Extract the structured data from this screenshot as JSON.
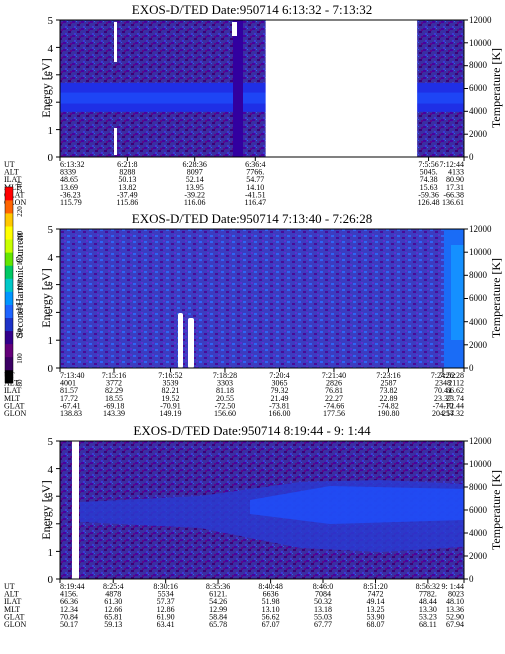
{
  "colorbar": {
    "label": "Second Harmonic Current",
    "ticks": [
      "80",
      "100",
      "120",
      "140",
      "160",
      "180",
      "200",
      "220",
      "240"
    ],
    "colors": [
      "#000000",
      "#3c0064",
      "#64007a",
      "#32008c",
      "#1e32c8",
      "#1e64ff",
      "#0096ff",
      "#00c8c8",
      "#00c864",
      "#64e600",
      "#c8ff00",
      "#ffff00",
      "#ffc800",
      "#ff6400",
      "#ff0000"
    ]
  },
  "chart_data": [
    {
      "type": "heatmap",
      "title": "EXOS-D/TED   Date:950714   6:13:32 - 7:13:32",
      "ylabel": "Energy [eV]",
      "ylim": [
        0,
        5
      ],
      "yticks": [
        "0",
        "1",
        "2",
        "3",
        "4",
        "5"
      ],
      "y2label": "Temperature [K]",
      "y2lim": [
        0,
        12000
      ],
      "y2ticks": [
        "0",
        "2000",
        "4000",
        "6000",
        "8000",
        "10000",
        "12000"
      ],
      "x_fraction": [
        0.0,
        0.1667,
        0.3334,
        0.4834,
        0.9123,
        1.0
      ],
      "band": {
        "low": 1.65,
        "high": 2.7,
        "mid_low": 1.95,
        "mid_high": 2.35
      },
      "gap": [
        0.509,
        0.884
      ],
      "rows": [
        {
          "label": "UT",
          "values": [
            "6:13:32",
            "6:21:8",
            "6:28:36",
            "6:36:4",
            "7:5:56",
            "7:12:44"
          ]
        },
        {
          "label": "ALT",
          "values": [
            "8339",
            "8288",
            "8097",
            "7766.",
            "5045.",
            "4133"
          ]
        },
        {
          "label": "ILAT",
          "values": [
            "48.65",
            "50.13",
            "52.14",
            "54.77",
            "74.38",
            "80.90"
          ]
        },
        {
          "label": "MLT",
          "values": [
            "13.69",
            "13.82",
            "13.95",
            "14.10",
            "15.63",
            "17.31"
          ]
        },
        {
          "label": "GLAT",
          "values": [
            "-36.23",
            "-37.49",
            "-39.22",
            "-41.51",
            "-59.36",
            "-66.38"
          ]
        },
        {
          "label": "GLON",
          "values": [
            "115.79",
            "115.86",
            "116.06",
            "116.47",
            "126.48",
            "136.61"
          ]
        }
      ]
    },
    {
      "type": "heatmap",
      "title": "EXOS-D/TED   Date:950714   7:13:40 - 7:26:28",
      "ylabel": "Energy [eV]",
      "ylim": [
        0,
        5
      ],
      "yticks": [
        "0",
        "1",
        "2",
        "3",
        "4",
        "5"
      ],
      "y2label": "Temperature [K]",
      "y2lim": [
        0,
        12000
      ],
      "y2ticks": [
        "0",
        "2000",
        "4000",
        "6000",
        "8000",
        "10000",
        "12000"
      ],
      "x_fraction": [
        0.0,
        0.1337,
        0.2734,
        0.4083,
        0.5432,
        0.6781,
        0.813,
        0.9479,
        1.0
      ],
      "rows": [
        {
          "label": "UT",
          "values": [
            "7:13:40",
            "7:15:16",
            "7:16:52",
            "7:18:28",
            "7:20:4",
            "7:21:40",
            "7:23:16",
            "7:24:52",
            "7:26:28"
          ]
        },
        {
          "label": "ALT",
          "values": [
            "4001",
            "3772",
            "3539",
            "3303",
            "3065",
            "2826",
            "2587",
            "2348",
            "2112"
          ]
        },
        {
          "label": "ILAT",
          "values": [
            "81.57",
            "82.29",
            "82.21",
            "81.18",
            "79.32",
            "76.81",
            "73.82",
            "70.41",
            "66.62"
          ]
        },
        {
          "label": "MLT",
          "values": [
            "17.72",
            "18.55",
            "19.52",
            "20.55",
            "21.49",
            "22.27",
            "22.89",
            "23.37",
            "23.74"
          ]
        },
        {
          "label": "GLAT",
          "values": [
            "-67.41",
            "-69.18",
            "-70.91",
            "-72.50",
            "-73.81",
            "-74.66",
            "-74.82",
            "-74.10",
            "-72.44"
          ]
        },
        {
          "label": "GLON",
          "values": [
            "138.83",
            "143.39",
            "149.19",
            "156.60",
            "166.00",
            "177.56",
            "190.80",
            "204.54",
            "217.32"
          ]
        }
      ]
    },
    {
      "type": "heatmap",
      "title": "EXOS-D/TED   Date:950714   8:19:44 - 9: 1:44",
      "ylabel": "Energy [eV]",
      "ylim": [
        0,
        5
      ],
      "yticks": [
        "0",
        "1",
        "2",
        "3",
        "4",
        "5"
      ],
      "y2label": "Temperature [K]",
      "y2lim": [
        0,
        12000
      ],
      "y2ticks": [
        "0",
        "2000",
        "4000",
        "6000",
        "8000",
        "10000",
        "12000"
      ],
      "x_fraction": [
        0.0,
        0.1318,
        0.2615,
        0.3913,
        0.5213,
        0.651,
        0.781,
        0.9105,
        1.0
      ],
      "rows": [
        {
          "label": "UT",
          "values": [
            "8:19:44",
            "8:25:4",
            "8:30:16",
            "8:35:36",
            "8:40:48",
            "8:46:0",
            "8:51:20",
            "8:56:32",
            "9: 1:44"
          ]
        },
        {
          "label": "ALT",
          "values": [
            "4156.",
            "4878",
            "5534",
            "6121.",
            "6636",
            "7084",
            "7472",
            "7782.",
            "8023"
          ]
        },
        {
          "label": "ILAT",
          "values": [
            "66.36",
            "61.30",
            "57.37",
            "54.26",
            "51.98",
            "50.32",
            "49.14",
            "48.44",
            "48.10"
          ]
        },
        {
          "label": "MLT",
          "values": [
            "12.34",
            "12.66",
            "12.86",
            "12.99",
            "13.10",
            "13.18",
            "13.25",
            "13.30",
            "13.36"
          ]
        },
        {
          "label": "GLAT",
          "values": [
            "70.84",
            "65.81",
            "61.90",
            "58.84",
            "56.62",
            "55.03",
            "53.90",
            "53.23",
            "52.90"
          ]
        },
        {
          "label": "GLON",
          "values": [
            "50.17",
            "59.13",
            "63.41",
            "65.78",
            "67.07",
            "67.77",
            "68.07",
            "68.11",
            "67.94"
          ]
        }
      ]
    }
  ]
}
